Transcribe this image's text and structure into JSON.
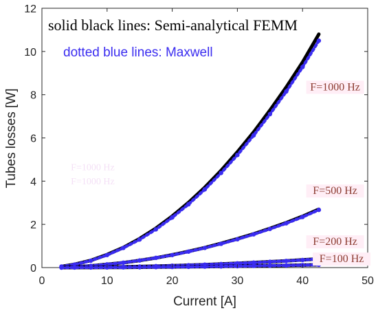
{
  "chart_data": {
    "type": "line",
    "title": "",
    "xlabel": "Current [A]",
    "ylabel": "Tubes losses [W]",
    "xlim": [
      0,
      50
    ],
    "ylim": [
      0,
      12
    ],
    "xticks": [
      "0",
      "10",
      "20",
      "30",
      "40",
      "50"
    ],
    "yticks": [
      "0",
      "2",
      "4",
      "6",
      "8",
      "10",
      "12"
    ],
    "grid": false,
    "legend": {
      "position": "top-left",
      "entries": [
        {
          "text": "solid black lines: Semi-analytical FEMM",
          "color": "#000000",
          "style": "solid"
        },
        {
          "text": "dotted blue lines: Maxwell",
          "color": "#3a2cf0",
          "style": "dotted"
        }
      ]
    },
    "x": [
      3,
      5,
      7.5,
      10,
      12.5,
      15,
      17.5,
      20,
      22.5,
      25,
      27.5,
      30,
      32.5,
      35,
      37.5,
      40,
      42.5
    ],
    "series": [
      {
        "name": "F=1000 Hz",
        "femm": [
          0.05,
          0.15,
          0.33,
          0.6,
          0.93,
          1.34,
          1.82,
          2.38,
          3.01,
          3.71,
          4.49,
          5.35,
          6.27,
          7.28,
          8.35,
          9.5,
          10.8
        ],
        "maxwell": [
          0.05,
          0.14,
          0.32,
          0.58,
          0.91,
          1.3,
          1.77,
          2.32,
          2.93,
          3.62,
          4.38,
          5.21,
          6.12,
          7.1,
          8.15,
          9.28,
          10.5
        ]
      },
      {
        "name": "F=500 Hz",
        "femm": [
          0.01,
          0.04,
          0.08,
          0.15,
          0.23,
          0.33,
          0.45,
          0.59,
          0.75,
          0.92,
          1.12,
          1.33,
          1.56,
          1.81,
          2.08,
          2.37,
          2.7
        ],
        "maxwell": [
          0.01,
          0.04,
          0.08,
          0.15,
          0.23,
          0.33,
          0.45,
          0.58,
          0.74,
          0.91,
          1.1,
          1.31,
          1.54,
          1.79,
          2.05,
          2.34,
          2.67
        ]
      },
      {
        "name": "F=200 Hz",
        "femm": [
          0.002,
          0.006,
          0.013,
          0.022,
          0.035,
          0.05,
          0.068,
          0.088,
          0.112,
          0.138,
          0.167,
          0.2,
          0.234,
          0.272,
          0.312,
          0.355,
          0.4
        ],
        "maxwell": [
          0.002,
          0.006,
          0.013,
          0.022,
          0.035,
          0.05,
          0.068,
          0.088,
          0.111,
          0.137,
          0.166,
          0.198,
          0.232,
          0.269,
          0.309,
          0.352,
          0.397
        ]
      },
      {
        "name": "F=100 Hz",
        "femm": [
          0.0,
          0.002,
          0.004,
          0.007,
          0.011,
          0.016,
          0.022,
          0.029,
          0.037,
          0.045,
          0.055,
          0.065,
          0.077,
          0.089,
          0.102,
          0.116,
          0.13
        ],
        "maxwell": [
          0.0,
          0.002,
          0.004,
          0.007,
          0.011,
          0.016,
          0.022,
          0.029,
          0.036,
          0.045,
          0.054,
          0.064,
          0.076,
          0.088,
          0.101,
          0.115,
          0.129
        ]
      }
    ],
    "annotations": [
      {
        "text": "F=1000 Hz",
        "x": 45,
        "y": 8.2
      },
      {
        "text": "F=500 Hz",
        "x": 45,
        "y": 3.4
      },
      {
        "text": "F=200 Hz",
        "x": 45,
        "y": 1.05
      },
      {
        "text": "F=100 Hz",
        "x": 46,
        "y": 0.25
      }
    ],
    "ghost_annotations": [
      {
        "text": "F=1000 Hz",
        "x": 7.8,
        "y": 4.5
      },
      {
        "text": "F=1000 Hz",
        "x": 7.8,
        "y": 3.85
      }
    ]
  }
}
